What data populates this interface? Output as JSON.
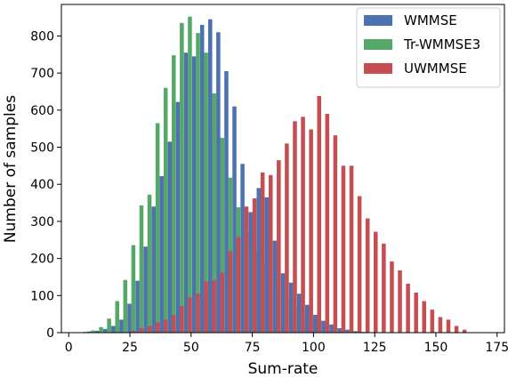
{
  "chart_data": {
    "type": "bar",
    "title": "",
    "xlabel": "Sum-rate",
    "ylabel": "Number of samples",
    "xlim": [
      -3,
      178
    ],
    "ylim": [
      0,
      885
    ],
    "xticks": [
      0,
      25,
      50,
      75,
      100,
      125,
      150,
      175
    ],
    "yticks": [
      0,
      100,
      200,
      300,
      400,
      500,
      600,
      700,
      800
    ],
    "grid": false,
    "legend_position": "top-right",
    "bin_width": 1.65,
    "series": [
      {
        "name": "WMMSE",
        "color": "#4c72b0",
        "x": [
          5,
          8.3,
          11.6,
          14.9,
          18.2,
          21.5,
          24.8,
          28.1,
          31.4,
          34.7,
          38,
          41.3,
          44.6,
          47.9,
          51.2,
          54.5,
          57.8,
          61.1,
          64.4,
          67.7,
          71,
          74.3,
          77.6,
          80.9,
          84.2,
          87.5,
          90.8,
          94.1,
          97.4,
          100.7,
          104,
          107.3,
          110.6,
          113.9,
          117.2,
          120.5
        ],
        "values": [
          1,
          3,
          5,
          10,
          18,
          35,
          78,
          140,
          232,
          340,
          422,
          515,
          622,
          755,
          745,
          830,
          845,
          810,
          705,
          610,
          455,
          325,
          390,
          365,
          248,
          160,
          135,
          105,
          75,
          48,
          32,
          22,
          12,
          8,
          4,
          2
        ]
      },
      {
        "name": "Tr-WMMSE3",
        "color": "#55a868",
        "x": [
          6.6,
          9.9,
          13.2,
          16.5,
          19.8,
          23.1,
          26.4,
          29.7,
          33,
          36.3,
          39.6,
          42.9,
          46.2,
          49.5,
          52.8,
          56.1,
          59.4,
          62.7,
          66,
          69.3,
          72.6,
          75.9,
          79.2,
          82.5,
          85.8,
          89.1,
          92.4,
          95.7,
          99,
          102.3,
          105.6,
          108.9,
          112.2,
          115.5,
          118.8,
          122.1,
          125.4
        ],
        "values": [
          2,
          6,
          15,
          38,
          85,
          142,
          236,
          343,
          372,
          565,
          660,
          748,
          835,
          852,
          808,
          755,
          645,
          525,
          418,
          338,
          272,
          218,
          192,
          148,
          118,
          90,
          70,
          50,
          38,
          25,
          18,
          12,
          8,
          5,
          3,
          2,
          1
        ]
      },
      {
        "name": "UWMMSE",
        "color": "#c44e52",
        "x": [
          26.4,
          29.7,
          33,
          36.3,
          39.6,
          42.9,
          46.2,
          49.5,
          52.8,
          56.1,
          59.4,
          62.7,
          66,
          69.3,
          72.6,
          75.9,
          79.2,
          82.5,
          85.8,
          89.1,
          92.4,
          95.7,
          99,
          102.3,
          105.6,
          108.9,
          112.2,
          115.5,
          118.8,
          122.1,
          125.4,
          128.7,
          132,
          135.3,
          138.6,
          141.9,
          145.2,
          148.5,
          151.8,
          155.1,
          158.4,
          161.7
        ],
        "values": [
          5,
          12,
          18,
          28,
          35,
          48,
          72,
          95,
          105,
          138,
          142,
          162,
          220,
          258,
          340,
          362,
          432,
          425,
          465,
          510,
          570,
          582,
          548,
          638,
          590,
          532,
          450,
          450,
          368,
          308,
          272,
          240,
          192,
          168,
          132,
          108,
          85,
          62,
          42,
          35,
          18,
          8
        ]
      }
    ]
  }
}
